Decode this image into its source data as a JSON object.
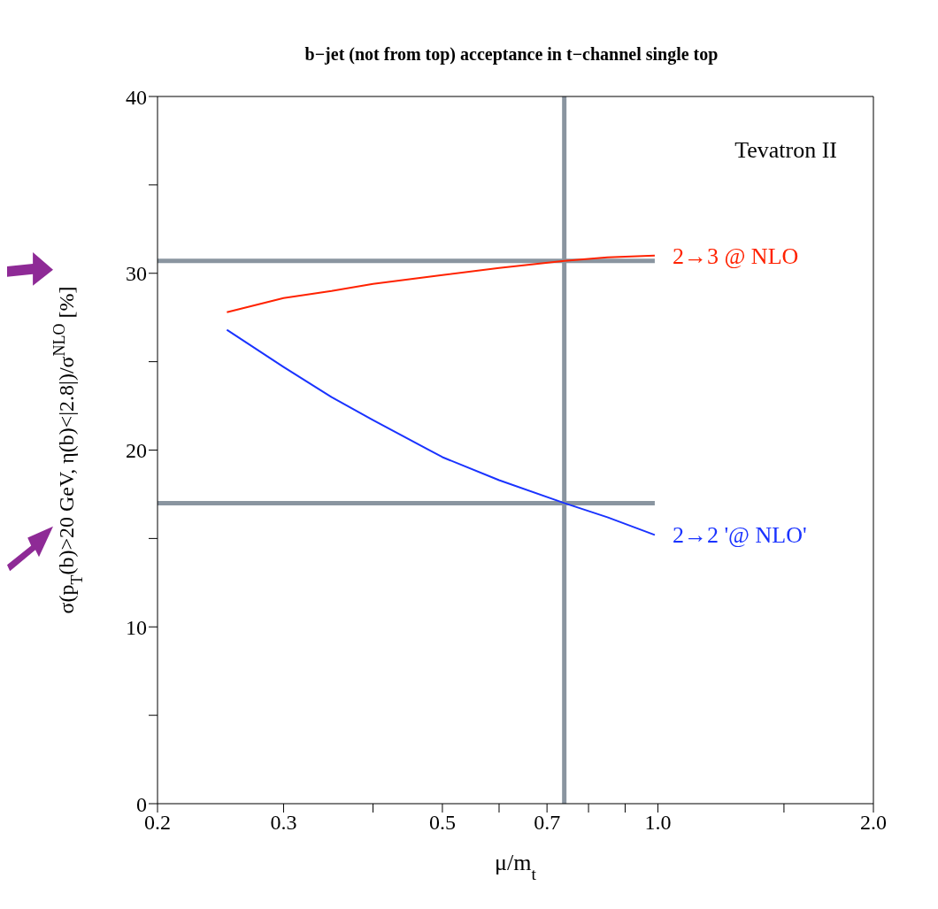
{
  "chart_data": {
    "type": "line",
    "title": "b−jet (not from top)  acceptance in t−channel single top",
    "xlabel": "μ/m$_{t}$",
    "ylabel": "σ(p$_{T}$(b)>20 GeV, η(b)<|2.8|)/σ$^{NLO}$ [%]",
    "annotations": [
      "Tevatron II"
    ],
    "log": "x",
    "xlim": [
      0.2,
      2.0
    ],
    "ylim": [
      0,
      40
    ],
    "xticks": [
      0.2,
      0.3,
      {
        "value": 0.4,
        "label": null
      },
      0.5,
      {
        "value": 0.6,
        "label": null
      },
      0.7,
      {
        "value": 0.8,
        "label": null
      },
      {
        "value": 0.9,
        "label": null
      },
      {
        "value": 1,
        "label": "1.0"
      },
      {
        "value": 1.5,
        "label": null
      },
      {
        "value": 2,
        "label": "2.0"
      }
    ],
    "yticks": [
      0,
      {
        "value": 5,
        "label": null
      },
      10,
      {
        "value": 15,
        "label": null
      },
      20,
      {
        "value": 25,
        "label": null
      },
      30,
      {
        "value": 35,
        "label": null
      },
      40
    ],
    "marker": "none",
    "line_style": "solid",
    "series": [
      {
        "name": "2→3 @ NLO",
        "color": "#ff2200",
        "x": [
          0.25,
          0.3,
          0.35,
          0.4,
          0.5,
          0.6,
          0.74,
          0.85,
          0.99
        ],
        "values": [
          27.8,
          28.6,
          29.0,
          29.4,
          29.9,
          30.3,
          30.7,
          30.9,
          31.0
        ]
      },
      {
        "name": "2→2 '@ NLO'",
        "color": "#1a33ff",
        "x": [
          0.25,
          0.3,
          0.35,
          0.4,
          0.5,
          0.6,
          0.74,
          0.85,
          0.99
        ],
        "values": [
          26.8,
          24.7,
          23.0,
          21.7,
          19.6,
          18.3,
          17.0,
          16.2,
          15.2
        ]
      }
    ],
    "ref_lines": [
      {
        "axis": "y",
        "value": 30.7,
        "color": "#8a95a0"
      },
      {
        "axis": "y",
        "value": 17.0,
        "color": "#8a95a0"
      },
      {
        "axis": "x",
        "value": 0.74,
        "color": "#8a95a0"
      }
    ]
  }
}
